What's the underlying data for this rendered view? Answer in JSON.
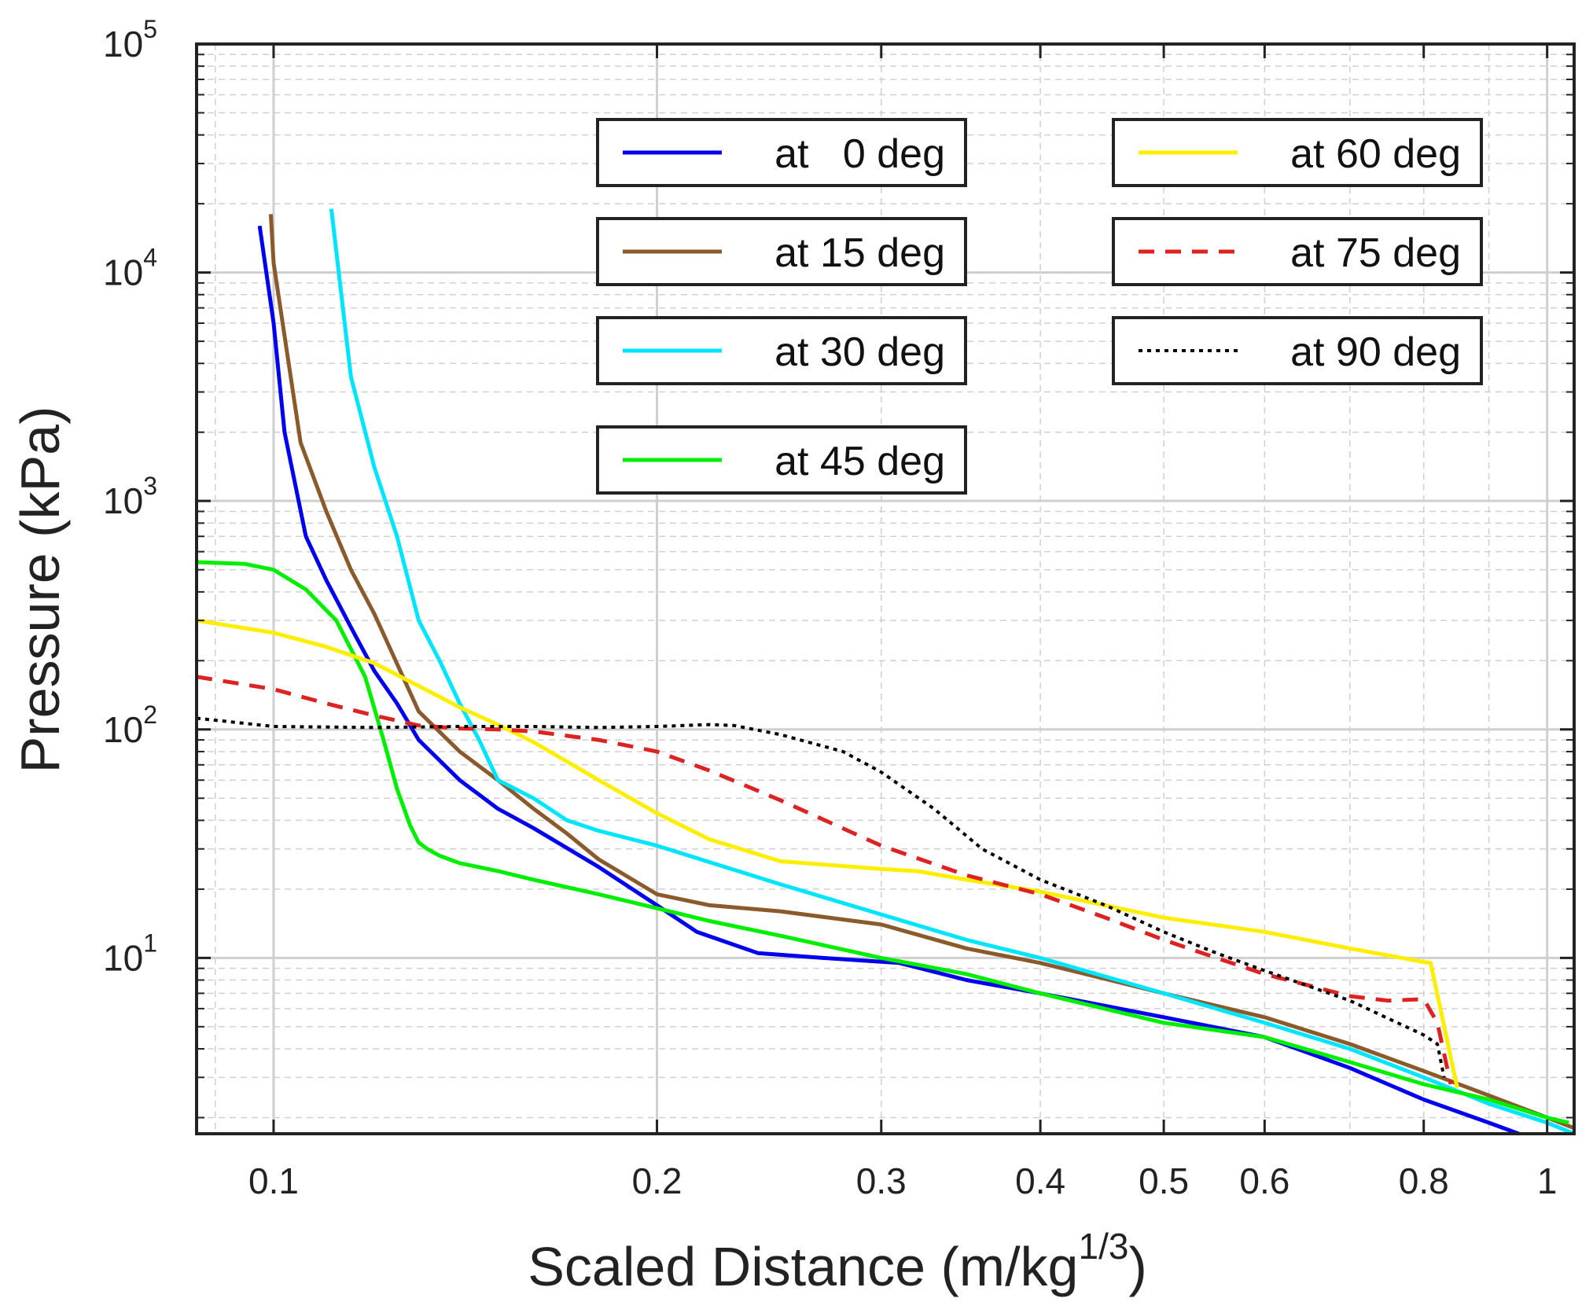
{
  "chart_data": {
    "type": "line",
    "xscale": "log",
    "yscale": "log",
    "xlim": [
      0.087,
      1.05
    ],
    "ylim": [
      1.7,
      100000
    ],
    "xlabel": "Scaled Distance (m/kg",
    "xlabel_sup": "1/3",
    "xlabel_end": ")",
    "ylabel": "Pressure (kPa)",
    "grid": true,
    "legend_position": "top-center (two columns)",
    "xticks": [
      {
        "value": 0.1,
        "label": "0.1"
      },
      {
        "value": 0.2,
        "label": "0.2"
      },
      {
        "value": 0.3,
        "label": "0.3"
      },
      {
        "value": 0.4,
        "label": "0.4"
      },
      {
        "value": 0.5,
        "label": "0.5"
      },
      {
        "value": 0.6,
        "label": "0.6"
      },
      {
        "value": 0.8,
        "label": "0.8"
      },
      {
        "value": 1.0,
        "label": "1"
      }
    ],
    "yticks": [
      {
        "value": 10,
        "base": "10",
        "exp": "1"
      },
      {
        "value": 100,
        "base": "10",
        "exp": "2"
      },
      {
        "value": 1000,
        "base": "10",
        "exp": "3"
      },
      {
        "value": 10000,
        "base": "10",
        "exp": "4"
      },
      {
        "value": 100000,
        "base": "10",
        "exp": "5"
      }
    ],
    "series": [
      {
        "name": "at   0 deg",
        "color": "#0000ee",
        "dash": "solid",
        "x": [
          0.0975,
          0.1,
          0.102,
          0.106,
          0.11,
          0.115,
          0.12,
          0.125,
          0.13,
          0.14,
          0.15,
          0.16,
          0.18,
          0.2,
          0.215,
          0.24,
          0.27,
          0.31,
          0.35,
          0.4,
          0.5,
          0.6,
          0.7,
          0.8,
          0.9,
          0.95
        ],
        "y": [
          16000,
          6000,
          2000,
          700,
          450,
          280,
          180,
          130,
          90,
          60,
          45,
          37,
          25,
          17,
          13,
          10.5,
          10,
          9.5,
          8,
          7,
          5.5,
          4.5,
          3.3,
          2.4,
          1.9,
          1.7
        ]
      },
      {
        "name": "at 15 deg",
        "color": "#8b5a2b",
        "dash": "solid",
        "x": [
          0.0995,
          0.1,
          0.105,
          0.11,
          0.115,
          0.12,
          0.13,
          0.14,
          0.15,
          0.16,
          0.17,
          0.18,
          0.2,
          0.22,
          0.25,
          0.3,
          0.35,
          0.4,
          0.5,
          0.6,
          0.7,
          0.8,
          0.9,
          1.0,
          1.05
        ],
        "y": [
          18000,
          11000,
          1800,
          900,
          500,
          320,
          120,
          80,
          60,
          45,
          35,
          27,
          19,
          17,
          16,
          14,
          11,
          9.5,
          7,
          5.5,
          4.2,
          3.2,
          2.5,
          2.0,
          1.8
        ]
      },
      {
        "name": "at 30 deg",
        "color": "#00e5ff",
        "dash": "solid",
        "x": [
          0.111,
          0.115,
          0.12,
          0.125,
          0.13,
          0.135,
          0.14,
          0.145,
          0.15,
          0.16,
          0.17,
          0.18,
          0.2,
          0.25,
          0.3,
          0.35,
          0.4,
          0.5,
          0.6,
          0.7,
          0.8,
          0.9,
          1.0,
          1.05
        ],
        "y": [
          19000,
          3500,
          1400,
          700,
          300,
          200,
          130,
          90,
          60,
          50,
          40,
          36,
          31,
          21,
          15.5,
          12,
          10,
          7,
          5.2,
          4,
          3.0,
          2.3,
          1.9,
          1.7
        ]
      },
      {
        "name": "at 45 deg",
        "color": "#00ee00",
        "dash": "solid",
        "x": [
          0.087,
          0.095,
          0.1,
          0.106,
          0.112,
          0.118,
          0.122,
          0.125,
          0.128,
          0.13,
          0.132,
          0.135,
          0.14,
          0.15,
          0.16,
          0.18,
          0.2,
          0.22,
          0.25,
          0.3,
          0.35,
          0.4,
          0.5,
          0.6,
          0.7,
          0.8,
          0.9,
          1.0,
          1.04
        ],
        "y": [
          540,
          530,
          500,
          410,
          300,
          170,
          90,
          55,
          38,
          32,
          30,
          28,
          26,
          24,
          22,
          19,
          16.5,
          14.5,
          12.5,
          10,
          8.5,
          7,
          5.2,
          4.5,
          3.5,
          2.8,
          2.4,
          2.0,
          1.9
        ]
      },
      {
        "name": "at 60 deg",
        "color": "#ffee00",
        "dash": "solid",
        "x": [
          0.087,
          0.1,
          0.11,
          0.12,
          0.13,
          0.14,
          0.15,
          0.16,
          0.18,
          0.2,
          0.22,
          0.25,
          0.3,
          0.32,
          0.35,
          0.4,
          0.5,
          0.6,
          0.7,
          0.8,
          0.81,
          0.85
        ],
        "y": [
          300,
          265,
          230,
          195,
          155,
          125,
          105,
          88,
          60,
          43,
          33,
          26.5,
          24.5,
          24,
          22,
          19.5,
          15,
          13,
          11,
          9.6,
          9.5,
          2.7
        ]
      },
      {
        "name": "at 75 deg",
        "color": "#dd2222",
        "dash": "dashed",
        "x": [
          0.087,
          0.1,
          0.11,
          0.12,
          0.13,
          0.14,
          0.15,
          0.16,
          0.18,
          0.2,
          0.22,
          0.25,
          0.3,
          0.35,
          0.4,
          0.45,
          0.5,
          0.55,
          0.6,
          0.7,
          0.75,
          0.8,
          0.82,
          0.84
        ],
        "y": [
          170,
          150,
          130,
          115,
          104,
          101,
          100,
          98,
          90,
          80,
          66,
          49,
          31,
          23,
          19,
          15,
          12,
          10,
          8.5,
          6.8,
          6.5,
          6.6,
          5.2,
          2.8
        ]
      },
      {
        "name": "at 90 deg",
        "color": "#000000",
        "dash": "dotted",
        "x": [
          0.087,
          0.1,
          0.12,
          0.14,
          0.16,
          0.18,
          0.2,
          0.22,
          0.23,
          0.25,
          0.28,
          0.3,
          0.33,
          0.36,
          0.4,
          0.45,
          0.5,
          0.55,
          0.6,
          0.7,
          0.8,
          0.82,
          0.83
        ],
        "y": [
          112,
          103,
          102,
          103,
          103,
          102,
          103,
          105,
          104,
          95,
          80,
          65,
          45,
          30,
          22,
          17,
          13,
          10.5,
          8.8,
          6.5,
          4.6,
          4.2,
          3.0
        ]
      }
    ]
  }
}
